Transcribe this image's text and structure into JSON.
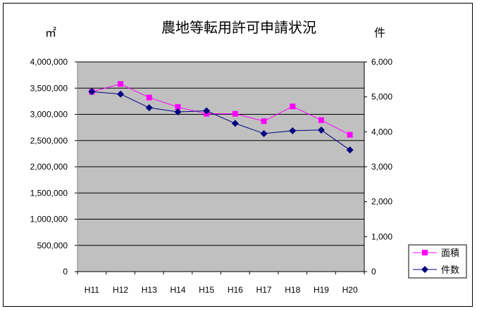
{
  "chart_data": {
    "type": "line",
    "title": "農地等転用許可申請状況",
    "left_unit": "㎡",
    "right_unit": "件",
    "categories": [
      "H11",
      "H12",
      "H13",
      "H14",
      "H15",
      "H16",
      "H17",
      "H18",
      "H19",
      "H20"
    ],
    "left_axis": {
      "ylim": [
        0,
        4000000
      ],
      "ticks": [
        "0",
        "500,000",
        "1,000,000",
        "1,500,000",
        "2,000,000",
        "2,500,000",
        "3,000,000",
        "3,500,000",
        "4,000,000"
      ]
    },
    "right_axis": {
      "ylim": [
        0,
        6000
      ],
      "ticks": [
        "0",
        "1,000",
        "2,000",
        "3,000",
        "4,000",
        "5,000",
        "6,000"
      ]
    },
    "grid": true,
    "plot_background": "#c0c0c0",
    "legend_position": "bottom-right",
    "series": [
      {
        "name": "面積",
        "axis": "left",
        "color": "#ff00ff",
        "marker": "square",
        "values": [
          3430000,
          3580000,
          3320000,
          3140000,
          3010000,
          3010000,
          2870000,
          3150000,
          2890000,
          2610000
        ]
      },
      {
        "name": "件数",
        "axis": "right",
        "color": "#000080",
        "marker": "diamond",
        "values": [
          5150,
          5080,
          4690,
          4570,
          4600,
          4240,
          3950,
          4030,
          4050,
          3480
        ]
      }
    ]
  }
}
